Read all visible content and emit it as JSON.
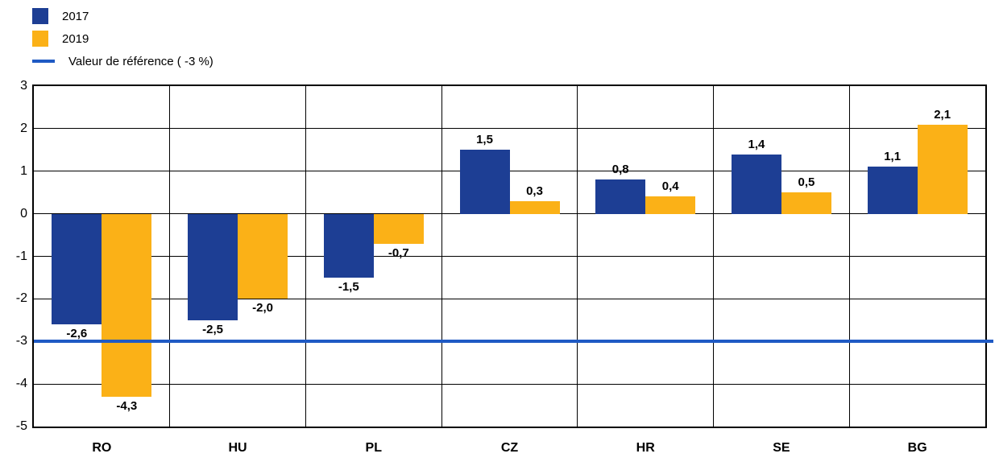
{
  "legend": [
    {
      "label": "2017",
      "type": "square",
      "color": "#1d3e94"
    },
    {
      "label": "2019",
      "type": "square",
      "color": "#fbb117"
    },
    {
      "label": "Valeur de référence ( -3 %)",
      "type": "line",
      "color": "#1f5ac4"
    }
  ],
  "chart_data": {
    "type": "bar",
    "title": "",
    "xlabel": "",
    "ylabel": "",
    "categories": [
      "RO",
      "HU",
      "PL",
      "CZ",
      "HR",
      "SE",
      "BG"
    ],
    "series": [
      {
        "name": "2017",
        "color": "#1d3e94",
        "values": [
          -2.6,
          -2.5,
          -1.5,
          1.5,
          0.8,
          1.4,
          1.1
        ]
      },
      {
        "name": "2019",
        "color": "#fbb117",
        "values": [
          -4.3,
          -2.0,
          -0.7,
          0.3,
          0.4,
          0.5,
          2.1
        ]
      }
    ],
    "labels": [
      [
        "-2,6",
        "-2,5",
        "-1,5",
        "1,5",
        "0,8",
        "1,4",
        "1,1"
      ],
      [
        "-4,3",
        "-2,0",
        "-0,7",
        "0,3",
        "0,4",
        "0,5",
        "2,1"
      ]
    ],
    "yticks": [
      3,
      2,
      1,
      0,
      -1,
      -2,
      -3,
      -4,
      -5
    ],
    "ylim": [
      -5,
      3
    ],
    "grid": true,
    "legend_position": "top-left",
    "reference_line": {
      "value": -3,
      "label": "Valeur de référence ( -3 %)",
      "color": "#1f5ac4"
    }
  }
}
